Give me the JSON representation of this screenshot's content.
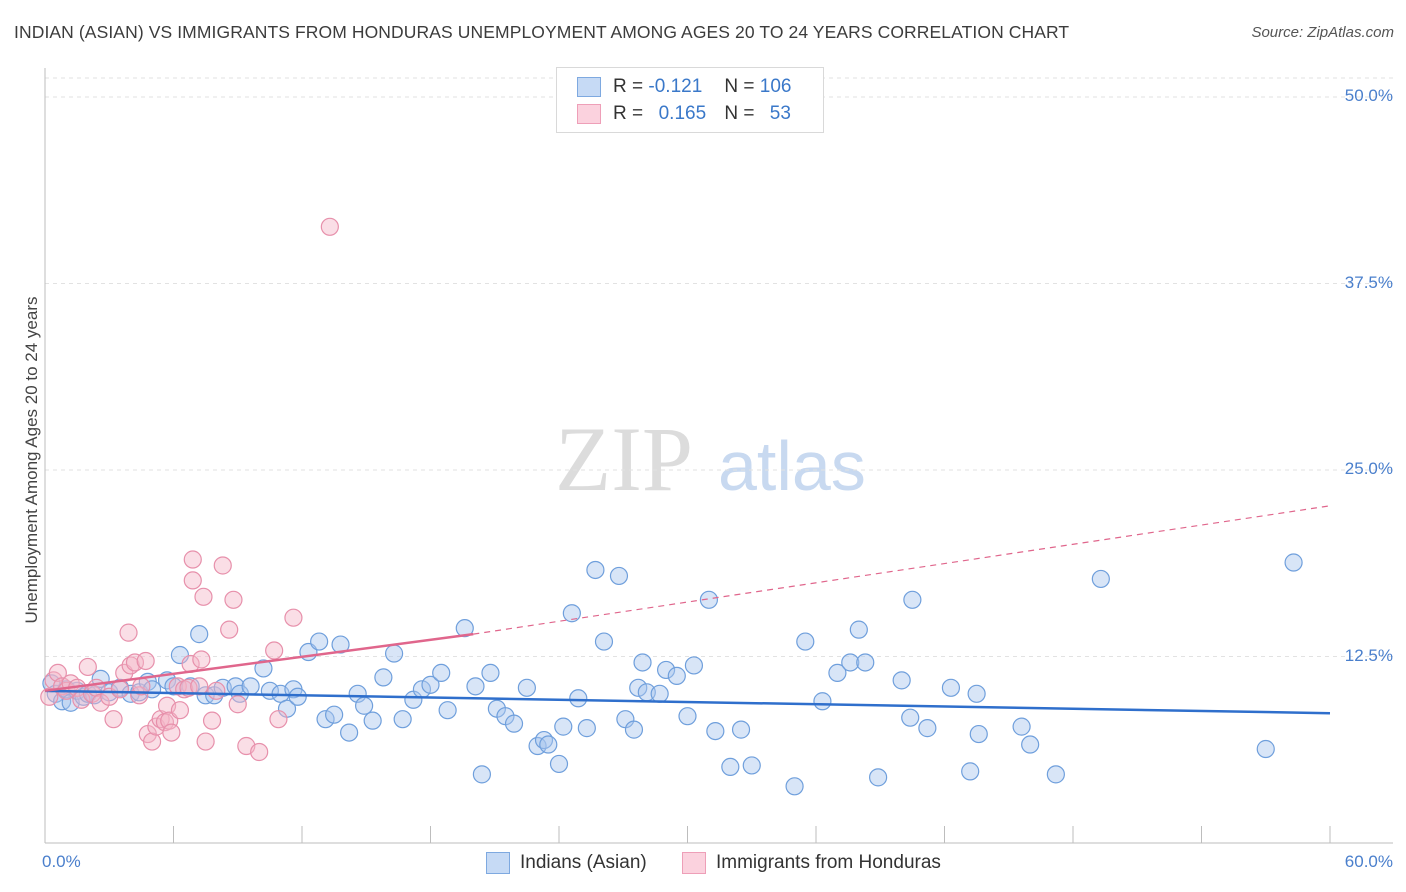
{
  "title": "INDIAN (ASIAN) VS IMMIGRANTS FROM HONDURAS UNEMPLOYMENT AMONG AGES 20 TO 24 YEARS CORRELATION CHART",
  "source": "Source: ZipAtlas.com",
  "watermark": {
    "zip": "ZIP",
    "atlas": "atlas"
  },
  "legend_top": {
    "rows": [
      {
        "r_label": "R = ",
        "r_value": "-0.121",
        "n_label": "N = ",
        "n_value": "106",
        "color": "#a8c6ee"
      },
      {
        "r_label": "R = ",
        "r_value": "0.165",
        "n_label": "N = ",
        "n_value": "53",
        "color": "#f5b6c8"
      }
    ]
  },
  "legend_bottom": [
    {
      "label": "Indians (Asian)",
      "color": "#a8c6ee"
    },
    {
      "label": "Immigrants from Honduras",
      "color": "#f5b6c8"
    }
  ],
  "chart_data": {
    "type": "scatter",
    "title": "INDIAN (ASIAN) VS IMMIGRANTS FROM HONDURAS UNEMPLOYMENT AMONG AGES 20 TO 24 YEARS CORRELATION CHART",
    "xlabel": "",
    "ylabel": "Unemployment Among Ages 20 to 24 years",
    "xlim": [
      0,
      60
    ],
    "ylim": [
      0,
      50
    ],
    "x_tick_labels": {
      "min": "0.0%",
      "max": "60.0%"
    },
    "y_ticks": [
      {
        "value": 12.5,
        "label": "12.5%"
      },
      {
        "value": 25,
        "label": "25.0%"
      },
      {
        "value": 37.5,
        "label": "37.5%"
      },
      {
        "value": 50,
        "label": "50.0%"
      }
    ],
    "grid": true,
    "series": [
      {
        "name": "Indians (Asian)",
        "color": "#a8c6ee",
        "stroke": "#6f9fdc",
        "trend": {
          "x": [
            0,
            60
          ],
          "y": [
            10.2,
            8.7
          ],
          "color": "#2f6fcc",
          "dashed_from": null
        },
        "points": [
          [
            0.3,
            10.7
          ],
          [
            0.5,
            10.0
          ],
          [
            0.8,
            9.5
          ],
          [
            1.0,
            10.3
          ],
          [
            1.2,
            9.4
          ],
          [
            1.5,
            10.2
          ],
          [
            1.8,
            9.8
          ],
          [
            2.0,
            10.0
          ],
          [
            2.3,
            9.9
          ],
          [
            2.6,
            11.0
          ],
          [
            3.0,
            10.1
          ],
          [
            3.5,
            10.4
          ],
          [
            4.0,
            10.0
          ],
          [
            4.4,
            10.1
          ],
          [
            4.8,
            10.8
          ],
          [
            5.0,
            10.3
          ],
          [
            5.7,
            10.9
          ],
          [
            6.0,
            10.5
          ],
          [
            6.3,
            12.6
          ],
          [
            6.8,
            10.5
          ],
          [
            7.2,
            14.0
          ],
          [
            7.5,
            9.9
          ],
          [
            7.9,
            9.9
          ],
          [
            8.3,
            10.4
          ],
          [
            8.9,
            10.5
          ],
          [
            9.1,
            10.0
          ],
          [
            9.6,
            10.5
          ],
          [
            10.2,
            11.7
          ],
          [
            10.5,
            10.2
          ],
          [
            11.0,
            10.0
          ],
          [
            11.3,
            9.0
          ],
          [
            11.6,
            10.3
          ],
          [
            11.8,
            9.8
          ],
          [
            12.3,
            12.8
          ],
          [
            12.8,
            13.5
          ],
          [
            13.1,
            8.3
          ],
          [
            13.5,
            8.6
          ],
          [
            13.8,
            13.3
          ],
          [
            14.2,
            7.4
          ],
          [
            14.6,
            10.0
          ],
          [
            14.9,
            9.2
          ],
          [
            15.3,
            8.2
          ],
          [
            15.8,
            11.1
          ],
          [
            16.3,
            12.7
          ],
          [
            16.7,
            8.3
          ],
          [
            17.2,
            9.6
          ],
          [
            17.6,
            10.3
          ],
          [
            18.0,
            10.6
          ],
          [
            18.5,
            11.4
          ],
          [
            18.8,
            8.9
          ],
          [
            19.6,
            14.4
          ],
          [
            20.1,
            10.5
          ],
          [
            20.4,
            4.6
          ],
          [
            20.8,
            11.4
          ],
          [
            21.1,
            9.0
          ],
          [
            21.5,
            8.5
          ],
          [
            21.9,
            8.0
          ],
          [
            22.5,
            10.4
          ],
          [
            23.0,
            6.5
          ],
          [
            23.3,
            6.9
          ],
          [
            23.5,
            6.6
          ],
          [
            24.0,
            5.3
          ],
          [
            24.2,
            7.8
          ],
          [
            24.6,
            15.4
          ],
          [
            24.9,
            9.7
          ],
          [
            25.3,
            7.7
          ],
          [
            25.7,
            18.3
          ],
          [
            26.1,
            13.5
          ],
          [
            26.8,
            17.9
          ],
          [
            27.1,
            8.3
          ],
          [
            27.5,
            7.6
          ],
          [
            27.7,
            10.4
          ],
          [
            27.9,
            12.1
          ],
          [
            28.1,
            10.1
          ],
          [
            28.7,
            10.0
          ],
          [
            29.0,
            11.6
          ],
          [
            29.5,
            11.2
          ],
          [
            30.0,
            8.5
          ],
          [
            30.3,
            11.9
          ],
          [
            31.0,
            16.3
          ],
          [
            31.3,
            7.5
          ],
          [
            32.0,
            5.1
          ],
          [
            32.5,
            7.6
          ],
          [
            33.0,
            5.2
          ],
          [
            35.0,
            3.8
          ],
          [
            35.5,
            13.5
          ],
          [
            36.3,
            9.5
          ],
          [
            37.0,
            11.4
          ],
          [
            37.6,
            12.1
          ],
          [
            38.0,
            14.3
          ],
          [
            38.3,
            12.1
          ],
          [
            38.9,
            4.4
          ],
          [
            40.0,
            10.9
          ],
          [
            40.4,
            8.4
          ],
          [
            40.5,
            16.3
          ],
          [
            41.2,
            7.7
          ],
          [
            42.3,
            10.4
          ],
          [
            43.2,
            4.8
          ],
          [
            43.5,
            10.0
          ],
          [
            43.6,
            7.3
          ],
          [
            45.6,
            7.8
          ],
          [
            46.0,
            6.6
          ],
          [
            47.2,
            4.6
          ],
          [
            49.3,
            17.7
          ],
          [
            57.0,
            6.3
          ],
          [
            58.3,
            18.8
          ]
        ]
      },
      {
        "name": "Immigrants from Honduras",
        "color": "#f5b6c8",
        "stroke": "#e790ab",
        "trend": {
          "x": [
            0,
            20
          ],
          "y": [
            10.2,
            14.0
          ],
          "color": "#e0668c",
          "dashed_from": 20,
          "dashed_to": {
            "x": 60,
            "y": 22.6
          }
        },
        "points": [
          [
            0.2,
            9.8
          ],
          [
            0.4,
            10.9
          ],
          [
            0.6,
            11.4
          ],
          [
            0.8,
            10.5
          ],
          [
            1.0,
            10.2
          ],
          [
            1.2,
            10.7
          ],
          [
            1.5,
            10.4
          ],
          [
            1.7,
            9.6
          ],
          [
            2.0,
            11.8
          ],
          [
            2.2,
            10.0
          ],
          [
            2.4,
            10.4
          ],
          [
            2.6,
            9.4
          ],
          [
            3.0,
            9.8
          ],
          [
            3.2,
            8.3
          ],
          [
            3.5,
            10.3
          ],
          [
            3.7,
            11.4
          ],
          [
            3.9,
            14.1
          ],
          [
            4.0,
            11.9
          ],
          [
            4.2,
            12.1
          ],
          [
            4.4,
            9.9
          ],
          [
            4.5,
            10.5
          ],
          [
            4.7,
            12.2
          ],
          [
            4.8,
            7.3
          ],
          [
            5.0,
            6.8
          ],
          [
            5.2,
            7.8
          ],
          [
            5.4,
            8.3
          ],
          [
            5.6,
            8.1
          ],
          [
            5.7,
            9.2
          ],
          [
            5.8,
            8.2
          ],
          [
            5.9,
            7.4
          ],
          [
            6.2,
            10.5
          ],
          [
            6.3,
            8.9
          ],
          [
            6.5,
            10.3
          ],
          [
            6.7,
            10.4
          ],
          [
            6.8,
            12.0
          ],
          [
            6.9,
            17.6
          ],
          [
            6.9,
            19.0
          ],
          [
            7.2,
            10.5
          ],
          [
            7.3,
            12.3
          ],
          [
            7.4,
            16.5
          ],
          [
            7.5,
            6.8
          ],
          [
            7.8,
            8.2
          ],
          [
            8.0,
            10.2
          ],
          [
            8.3,
            18.6
          ],
          [
            8.6,
            14.3
          ],
          [
            8.8,
            16.3
          ],
          [
            9.0,
            9.3
          ],
          [
            9.4,
            6.5
          ],
          [
            10.0,
            6.1
          ],
          [
            10.7,
            12.9
          ],
          [
            10.9,
            8.3
          ],
          [
            11.6,
            15.1
          ],
          [
            13.3,
            41.3
          ]
        ]
      }
    ]
  }
}
